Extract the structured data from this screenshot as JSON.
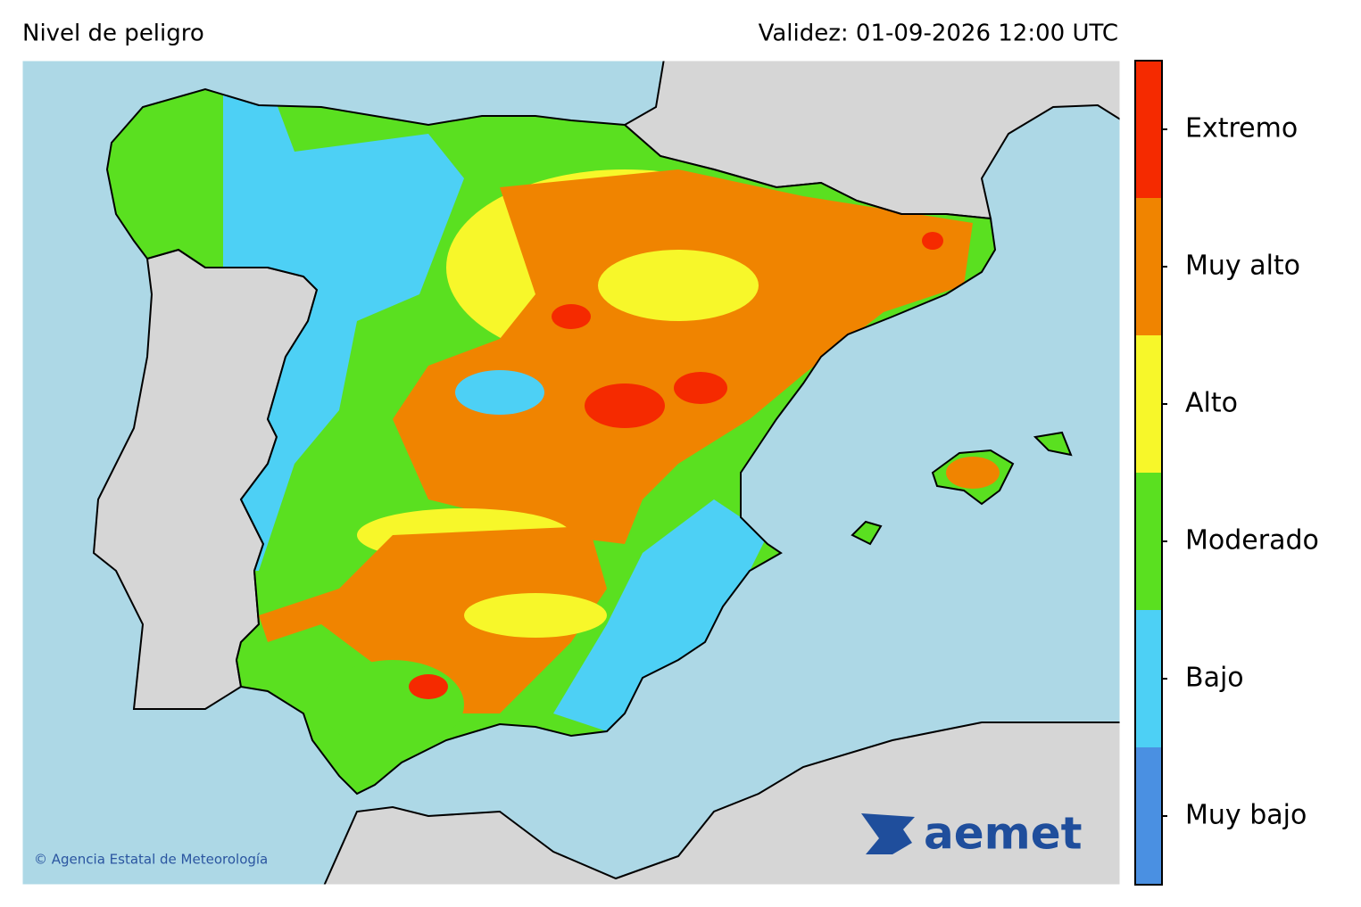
{
  "header": {
    "title": "Nivel de peligro",
    "validity": "Validez: 01-09-2026 12:00 UTC"
  },
  "legend": {
    "levels": [
      {
        "name": "Muy bajo",
        "color": "#4a90e2"
      },
      {
        "name": "Bajo",
        "color": "#4dd0f5"
      },
      {
        "name": "Moderado",
        "color": "#5ae020"
      },
      {
        "name": "Alto",
        "color": "#f7f72a"
      },
      {
        "name": "Muy alto",
        "color": "#f08400"
      },
      {
        "name": "Extremo",
        "color": "#f52a00"
      }
    ]
  },
  "credit": "© Agencia Estatal de Meteorología",
  "logo": "aemet"
}
